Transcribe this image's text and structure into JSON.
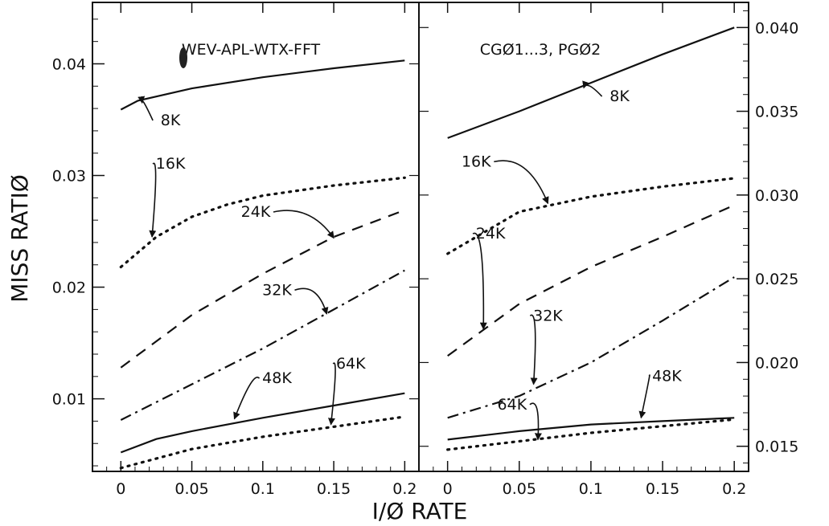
{
  "chart_data": [
    {
      "type": "line",
      "title": "WEV-APL-WTX-FFT",
      "xlabel": "I/Ø RATE",
      "ylabel": "MISS RATIØ",
      "xlim": [
        -0.02,
        0.21
      ],
      "ylim": [
        0.0035,
        0.0455
      ],
      "x_ticks": [
        0,
        0.05,
        0.1,
        0.15,
        0.2
      ],
      "x_tick_labels": [
        "0",
        "0.05",
        "0.1",
        "0.15",
        "0.2"
      ],
      "y_ticks": [
        0.01,
        0.02,
        0.03,
        0.04
      ],
      "y_tick_labels": [
        "0.01",
        "0.02",
        "0.03",
        "0.04"
      ],
      "y_axis_side": "left",
      "grid": false,
      "series": [
        {
          "name": "8K",
          "style": "solid",
          "x": [
            0,
            0.012,
            0.05,
            0.1,
            0.15,
            0.2
          ],
          "values": [
            0.0359,
            0.0367,
            0.0378,
            0.0388,
            0.0396,
            0.0403
          ]
        },
        {
          "name": "16K",
          "style": "dotted",
          "x": [
            0,
            0.025,
            0.05,
            0.075,
            0.1,
            0.15,
            0.2
          ],
          "values": [
            0.0218,
            0.0245,
            0.0263,
            0.0274,
            0.0282,
            0.0291,
            0.0298
          ]
        },
        {
          "name": "24K",
          "style": "dashed",
          "x": [
            0,
            0.05,
            0.1,
            0.15,
            0.2
          ],
          "values": [
            0.0128,
            0.0175,
            0.0212,
            0.0245,
            0.0269
          ]
        },
        {
          "name": "32K",
          "style": "dashdot",
          "x": [
            0,
            0.05,
            0.1,
            0.15,
            0.2
          ],
          "values": [
            0.0081,
            0.0113,
            0.0145,
            0.018,
            0.0215
          ]
        },
        {
          "name": "48K",
          "style": "solid",
          "x": [
            0,
            0.025,
            0.05,
            0.1,
            0.15,
            0.2
          ],
          "values": [
            0.0052,
            0.0064,
            0.0071,
            0.0083,
            0.0094,
            0.0105
          ]
        },
        {
          "name": "64K",
          "style": "dotted",
          "x": [
            0,
            0.05,
            0.1,
            0.15,
            0.2
          ],
          "values": [
            0.0038,
            0.0055,
            0.0066,
            0.0075,
            0.0084
          ]
        }
      ],
      "annotations": [
        {
          "text": "8K",
          "x": 0.035,
          "y": 0.0345,
          "target": [
            0.015,
            0.0365
          ]
        },
        {
          "text": "16K",
          "x": 0.035,
          "y": 0.0306,
          "target": [
            0.022,
            0.0245
          ]
        },
        {
          "text": "24K",
          "x": 0.095,
          "y": 0.0263,
          "target": [
            0.15,
            0.0244
          ]
        },
        {
          "text": "32K",
          "x": 0.11,
          "y": 0.0193,
          "target": [
            0.145,
            0.0176
          ]
        },
        {
          "text": "48K",
          "x": 0.11,
          "y": 0.0114,
          "target": [
            0.08,
            0.0082
          ]
        },
        {
          "text": "64K",
          "x": 0.162,
          "y": 0.0127,
          "target": [
            0.148,
            0.0077
          ]
        }
      ]
    },
    {
      "type": "line",
      "title": "CGØ1...3, PGØ2",
      "xlabel": "I/Ø RATE",
      "ylabel": "",
      "xlim": [
        -0.02,
        0.21
      ],
      "ylim": [
        0.0135,
        0.0415
      ],
      "x_ticks": [
        0,
        0.05,
        0.1,
        0.15,
        0.2
      ],
      "x_tick_labels": [
        "0",
        "0.05",
        "0.1",
        "0.15",
        "0.2"
      ],
      "y_ticks": [
        0.015,
        0.02,
        0.025,
        0.03,
        0.035,
        0.04
      ],
      "y_tick_labels": [
        "0.015",
        "0.020",
        "0.025",
        "0.030",
        "0.035",
        "0.040"
      ],
      "y_axis_side": "right",
      "grid": false,
      "series": [
        {
          "name": "8K",
          "style": "solid",
          "x": [
            0,
            0.05,
            0.1,
            0.15,
            0.2
          ],
          "values": [
            0.0334,
            0.035,
            0.0367,
            0.0384,
            0.04
          ]
        },
        {
          "name": "16K",
          "style": "dotted",
          "x": [
            0,
            0.05,
            0.1,
            0.15,
            0.2
          ],
          "values": [
            0.0265,
            0.029,
            0.0299,
            0.0305,
            0.031
          ]
        },
        {
          "name": "24K",
          "style": "dashed",
          "x": [
            0,
            0.05,
            0.1,
            0.15,
            0.2
          ],
          "values": [
            0.0204,
            0.0235,
            0.0257,
            0.0275,
            0.0294
          ]
        },
        {
          "name": "32K",
          "style": "dashdot",
          "x": [
            0,
            0.05,
            0.1,
            0.15,
            0.2
          ],
          "values": [
            0.0167,
            0.018,
            0.02,
            0.0225,
            0.0251
          ]
        },
        {
          "name": "48K",
          "style": "solid",
          "x": [
            0,
            0.05,
            0.1,
            0.15,
            0.2
          ],
          "values": [
            0.0154,
            0.0159,
            0.0163,
            0.0165,
            0.0167
          ]
        },
        {
          "name": "64K",
          "style": "dotted",
          "x": [
            0,
            0.05,
            0.1,
            0.15,
            0.2
          ],
          "values": [
            0.0148,
            0.0153,
            0.0158,
            0.0162,
            0.0166
          ]
        }
      ],
      "annotations": [
        {
          "text": "8K",
          "x": 0.12,
          "y": 0.0356,
          "target": [
            0.095,
            0.0364
          ]
        },
        {
          "text": "16K",
          "x": 0.02,
          "y": 0.0317,
          "target": [
            0.07,
            0.0295
          ]
        },
        {
          "text": "24K",
          "x": 0.03,
          "y": 0.0274,
          "target": [
            0.025,
            0.022
          ]
        },
        {
          "text": "32K",
          "x": 0.07,
          "y": 0.0225,
          "target": [
            0.06,
            0.0187
          ]
        },
        {
          "text": "48K",
          "x": 0.153,
          "y": 0.0189,
          "target": [
            0.135,
            0.0167
          ]
        },
        {
          "text": "64K",
          "x": 0.045,
          "y": 0.0172,
          "target": [
            0.063,
            0.0154
          ]
        }
      ]
    }
  ]
}
